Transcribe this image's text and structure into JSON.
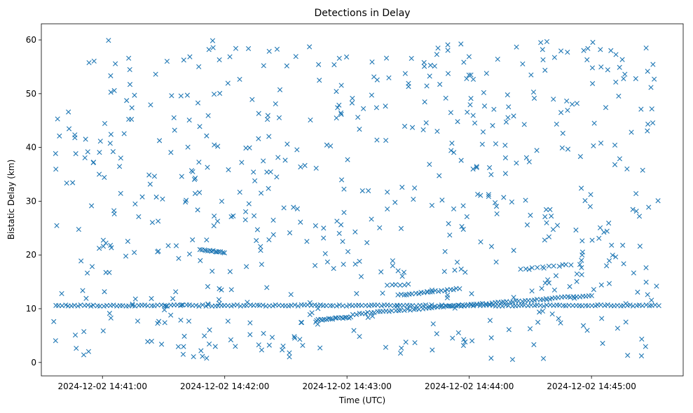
{
  "chart_data": {
    "type": "scatter",
    "title": "Detections in Delay",
    "xlabel": "Time (UTC)",
    "ylabel": "Bistatic Delay (km)",
    "x_range_seconds": [
      -30,
      285
    ],
    "x_origin_label": "2024-12-02 14:41:00",
    "xticks": [
      {
        "t": 0,
        "label": "2024-12-02 14:41:00"
      },
      {
        "t": 60,
        "label": "2024-12-02 14:42:00"
      },
      {
        "t": 120,
        "label": "2024-12-02 14:43:00"
      },
      {
        "t": 180,
        "label": "2024-12-02 14:44:00"
      },
      {
        "t": 240,
        "label": "2024-12-02 14:45:00"
      }
    ],
    "ylim": [
      -2.5,
      63
    ],
    "yticks": [
      0,
      10,
      20,
      30,
      40,
      50,
      60
    ],
    "marker": "x",
    "color": "#1f77b4",
    "grid": false,
    "series": [
      {
        "name": "Detections",
        "description": "seconds after 14:41:00 vs bistatic delay (km)",
        "points": "generated-below"
      }
    ],
    "tracks": [
      {
        "name": "clutter-band",
        "t_start": -23,
        "t_end": 273,
        "delay_start": 10.6,
        "delay_end": 10.6,
        "n": 190
      },
      {
        "name": "track-a",
        "t_start": 48,
        "t_end": 60,
        "delay_start": 21.0,
        "delay_end": 20.5,
        "n": 14
      },
      {
        "name": "track-b",
        "t_start": 105,
        "t_end": 122,
        "delay_start": 7.9,
        "delay_end": 8.4,
        "n": 18
      },
      {
        "name": "track-c",
        "t_start": 123,
        "t_end": 240,
        "delay_start": 9.0,
        "delay_end": 12.5,
        "n": 80
      },
      {
        "name": "track-d",
        "t_start": 145,
        "t_end": 175,
        "delay_start": 12.5,
        "delay_end": 13.7,
        "n": 22
      },
      {
        "name": "track-e",
        "t_start": 140,
        "t_end": 150,
        "delay_start": 14.3,
        "delay_end": 14.5,
        "n": 6
      },
      {
        "name": "track-f",
        "t_start": 205,
        "t_end": 230,
        "delay_start": 17.3,
        "delay_end": 18.2,
        "n": 10
      }
    ],
    "scatter_noise": {
      "t_range": [
        -24,
        274
      ],
      "delay_range": [
        0.5,
        60
      ],
      "n": 620
    }
  }
}
